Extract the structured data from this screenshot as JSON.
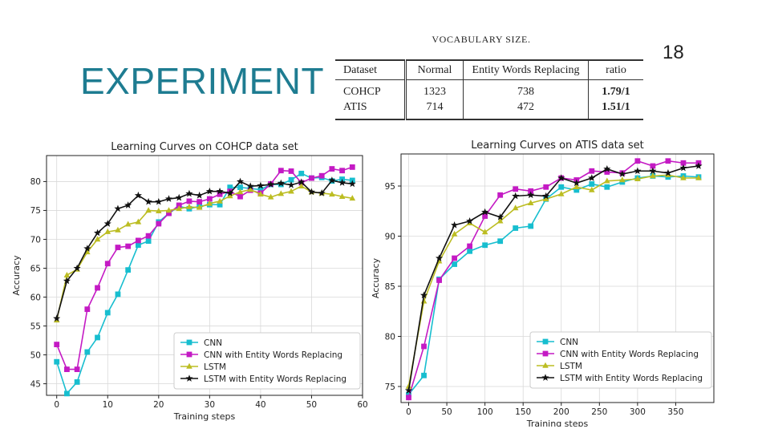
{
  "slide": {
    "title": "EXPERIMENT",
    "page_number": "18"
  },
  "vocab_table": {
    "caption": "VOCABULARY SIZE.",
    "headers": [
      "Dataset",
      "Normal",
      "Entity Words Replacing",
      "ratio"
    ],
    "rows": [
      [
        "COHCP",
        "1323",
        "738",
        "1.79/1"
      ],
      [
        "ATIS",
        "714",
        "472",
        "1.51/1"
      ]
    ]
  },
  "colors": {
    "title": "#1e7c91",
    "cnn": "#17becf",
    "cnn_ewr": "#c41ac4",
    "lstm": "#bcbd22",
    "lstm_ewr": "#111111"
  },
  "chart_data": [
    {
      "type": "line",
      "title": "Learning Curves on COHCP data set",
      "xlabel": "Training steps",
      "ylabel": "Accuracy",
      "xlim": [
        -2,
        60
      ],
      "ylim": [
        43,
        84.5
      ],
      "xticks": [
        0,
        10,
        20,
        30,
        40,
        50,
        60
      ],
      "yticks": [
        45,
        50,
        55,
        60,
        65,
        70,
        75,
        80
      ],
      "grid": true,
      "legend_position": "bottom-right",
      "x": [
        0,
        2,
        4,
        6,
        8,
        10,
        12,
        14,
        16,
        18,
        20,
        22,
        24,
        26,
        28,
        30,
        32,
        34,
        36,
        38,
        40,
        42,
        44,
        46,
        48,
        50,
        52,
        54,
        56,
        58
      ],
      "series": [
        {
          "name": "CNN",
          "color": "#17becf",
          "marker": "square",
          "values": [
            48.8,
            43.3,
            45.3,
            50.5,
            53.0,
            57.3,
            60.5,
            64.7,
            69.0,
            69.7,
            73.0,
            74.5,
            75.7,
            75.3,
            75.7,
            76.0,
            76.0,
            79.0,
            79.0,
            78.8,
            78.6,
            79.5,
            79.5,
            80.3,
            81.4,
            80.6,
            80.7,
            80.1,
            80.4,
            80.2
          ]
        },
        {
          "name": "CNN with Entity Words Replacing",
          "color": "#c41ac4",
          "marker": "square",
          "values": [
            51.8,
            47.5,
            47.5,
            57.9,
            61.6,
            65.8,
            68.6,
            68.8,
            69.8,
            70.6,
            72.7,
            74.5,
            75.9,
            76.6,
            76.5,
            77.0,
            77.8,
            78.3,
            77.4,
            78.5,
            78.0,
            79.6,
            81.9,
            81.8,
            79.8,
            80.6,
            81.0,
            82.2,
            81.9,
            82.5
          ]
        },
        {
          "name": "LSTM",
          "color": "#bcbd22",
          "marker": "triangle",
          "values": [
            56.0,
            63.8,
            64.8,
            67.8,
            70.0,
            71.3,
            71.6,
            72.6,
            73.0,
            75.0,
            74.9,
            75.0,
            75.3,
            75.6,
            75.5,
            76.2,
            76.6,
            77.5,
            78.2,
            78.6,
            77.8,
            77.3,
            77.9,
            78.3,
            79.2,
            78.2,
            78.0,
            77.8,
            77.4,
            77.1
          ]
        },
        {
          "name": "LSTM with Entity Words Replacing",
          "color": "#111111",
          "marker": "star",
          "values": [
            56.3,
            62.8,
            65.0,
            68.4,
            71.1,
            72.7,
            75.3,
            75.9,
            77.6,
            76.5,
            76.5,
            77.0,
            77.2,
            77.9,
            77.6,
            78.3,
            78.3,
            78.0,
            80.0,
            79.2,
            79.3,
            79.5,
            79.7,
            79.4,
            79.9,
            78.2,
            78.0,
            80.2,
            79.8,
            79.6
          ]
        }
      ]
    },
    {
      "type": "line",
      "title": "Learning Curves on ATIS data set",
      "xlabel": "Training steps",
      "ylabel": "Accuracy",
      "xlim": [
        -10,
        400
      ],
      "ylim": [
        73.4,
        98.2
      ],
      "xticks": [
        0,
        50,
        100,
        150,
        200,
        250,
        300,
        350
      ],
      "yticks": [
        75,
        80,
        85,
        90,
        95
      ],
      "grid": true,
      "legend_position": "bottom-right",
      "x": [
        0,
        20,
        40,
        60,
        80,
        100,
        120,
        140,
        160,
        180,
        200,
        220,
        240,
        260,
        280,
        300,
        320,
        340,
        360,
        380
      ],
      "series": [
        {
          "name": "CNN",
          "color": "#17becf",
          "marker": "square",
          "values": [
            74.2,
            76.1,
            85.7,
            87.2,
            88.5,
            89.1,
            89.5,
            90.8,
            91.0,
            93.7,
            94.9,
            94.6,
            95.2,
            94.9,
            95.4,
            95.8,
            96.0,
            95.9,
            96.0,
            95.9
          ]
        },
        {
          "name": "CNN with Entity Words Replacing",
          "color": "#c41ac4",
          "marker": "square",
          "values": [
            73.9,
            79.0,
            85.6,
            87.8,
            89.0,
            92.0,
            94.1,
            94.7,
            94.5,
            94.9,
            95.8,
            95.6,
            96.5,
            96.4,
            96.3,
            97.5,
            97.0,
            97.5,
            97.3,
            97.3
          ]
        },
        {
          "name": "LSTM",
          "color": "#bcbd22",
          "marker": "triangle",
          "values": [
            75.0,
            83.5,
            87.5,
            90.2,
            91.3,
            90.4,
            91.5,
            92.8,
            93.3,
            93.7,
            94.2,
            94.9,
            94.6,
            95.5,
            95.6,
            95.7,
            96.0,
            96.1,
            95.8,
            95.8
          ]
        },
        {
          "name": "LSTM with Entity Words Replacing",
          "color": "#111111",
          "marker": "star",
          "values": [
            74.6,
            84.1,
            87.8,
            91.1,
            91.5,
            92.4,
            91.9,
            94.0,
            94.1,
            94.0,
            95.8,
            95.3,
            95.8,
            96.7,
            96.2,
            96.5,
            96.5,
            96.3,
            96.8,
            97.0
          ]
        }
      ]
    }
  ]
}
